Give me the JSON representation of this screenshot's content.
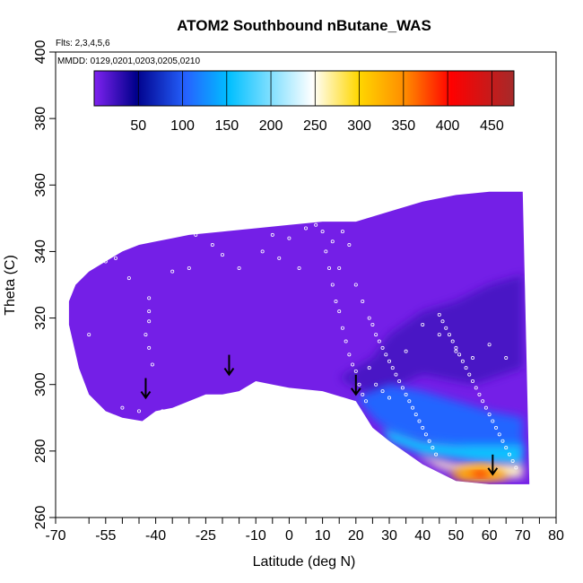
{
  "chart_data": {
    "type": "heatmap",
    "title": "ATOM2 Southbound nButane_WAS",
    "flights_label": "Flts: 2,3,4,5,6",
    "dates_label": "MMDD: 0129,0201,0203,0205,0210",
    "xlabel": "Latitude (deg N)",
    "ylabel": "Theta (C)",
    "xlim": [
      -70,
      80
    ],
    "ylim": [
      260,
      400
    ],
    "x_ticks": [
      -70,
      -55,
      -40,
      -25,
      -10,
      0,
      10,
      20,
      30,
      40,
      50,
      60,
      70,
      80
    ],
    "x_tick_labels": [
      "-70",
      "-55",
      "-40",
      "-25",
      "-10",
      "0",
      "10",
      "20",
      "30",
      "40",
      "50",
      "60",
      "70",
      "80"
    ],
    "x_minor_ticks": [
      -60,
      -50,
      -45,
      -35,
      -30,
      -20,
      -15,
      -5,
      5,
      15,
      25,
      35,
      45,
      55,
      65,
      75
    ],
    "y_ticks": [
      260,
      280,
      300,
      320,
      340,
      360,
      380,
      400
    ],
    "y_tick_labels": [
      "260",
      "280",
      "300",
      "320",
      "340",
      "360",
      "380",
      "400"
    ],
    "colorbar": {
      "range": [
        0,
        475
      ],
      "ticks": [
        50,
        100,
        150,
        200,
        250,
        300,
        350,
        400,
        450
      ],
      "tick_labels": [
        "50",
        "100",
        "150",
        "200",
        "250",
        "300",
        "350",
        "400",
        "450"
      ],
      "colors": [
        "#7f22f0",
        "#00008b",
        "#2563ff",
        "#00bfff",
        "#ffffff",
        "#ffd700",
        "#ff8c00",
        "#ff0000",
        "#a52a2a"
      ]
    },
    "boundary_top": [
      [
        -66,
        325
      ],
      [
        -64,
        330
      ],
      [
        -60,
        334
      ],
      [
        -55,
        337
      ],
      [
        -50,
        340
      ],
      [
        -45,
        342
      ],
      [
        -40,
        343
      ],
      [
        -35,
        344
      ],
      [
        -30,
        345
      ],
      [
        -20,
        346
      ],
      [
        -10,
        347
      ],
      [
        0,
        348
      ],
      [
        10,
        349
      ],
      [
        20,
        349
      ],
      [
        30,
        352
      ],
      [
        40,
        355
      ],
      [
        50,
        357
      ],
      [
        60,
        358
      ],
      [
        70,
        358
      ]
    ],
    "boundary_bottom": [
      [
        72,
        270
      ],
      [
        60,
        270
      ],
      [
        50,
        271
      ],
      [
        40,
        276
      ],
      [
        30,
        283
      ],
      [
        25,
        287
      ],
      [
        20,
        295
      ],
      [
        10,
        298
      ],
      [
        0,
        299
      ],
      [
        -5,
        300
      ],
      [
        -10,
        301
      ],
      [
        -15,
        298
      ],
      [
        -20,
        297
      ],
      [
        -25,
        297
      ],
      [
        -30,
        295
      ],
      [
        -35,
        293
      ],
      [
        -40,
        292
      ],
      [
        -44,
        289
      ],
      [
        -50,
        290
      ],
      [
        -55,
        292
      ],
      [
        -60,
        297
      ],
      [
        -63,
        305
      ],
      [
        -66,
        318
      ]
    ],
    "regions": [
      {
        "name": "dark-blue-core",
        "value": 25,
        "points": [
          [
            15,
            302
          ],
          [
            25,
            308
          ],
          [
            30,
            315
          ],
          [
            40,
            322
          ],
          [
            50,
            325
          ],
          [
            60,
            330
          ],
          [
            70,
            333
          ],
          [
            70,
            305
          ],
          [
            55,
            300
          ],
          [
            40,
            303
          ],
          [
            25,
            296
          ]
        ]
      },
      {
        "name": "blue-band",
        "value": 120,
        "points": [
          [
            20,
            296
          ],
          [
            30,
            300
          ],
          [
            40,
            298
          ],
          [
            50,
            295
          ],
          [
            60,
            292
          ],
          [
            70,
            290
          ],
          [
            70,
            280
          ],
          [
            55,
            280
          ],
          [
            45,
            282
          ],
          [
            32,
            285
          ],
          [
            26,
            289
          ]
        ]
      },
      {
        "name": "light-blue-band",
        "value": 180,
        "points": [
          [
            28,
            287
          ],
          [
            40,
            283
          ],
          [
            50,
            282
          ],
          [
            60,
            282
          ],
          [
            70,
            282
          ],
          [
            70,
            276
          ],
          [
            55,
            277
          ],
          [
            40,
            279
          ],
          [
            30,
            283
          ]
        ]
      },
      {
        "name": "pale-band",
        "value": 250,
        "points": [
          [
            38,
            279
          ],
          [
            50,
            276
          ],
          [
            62,
            276
          ],
          [
            70,
            276
          ],
          [
            70,
            272
          ],
          [
            56,
            272
          ],
          [
            45,
            275
          ]
        ]
      },
      {
        "name": "orange-core",
        "value": 340,
        "points": [
          [
            48,
            273
          ],
          [
            52,
            275
          ],
          [
            58,
            276
          ],
          [
            64,
            274
          ],
          [
            66,
            272
          ],
          [
            60,
            271
          ],
          [
            52,
            271
          ]
        ]
      },
      {
        "name": "red-core",
        "value": 420,
        "points": [
          [
            54,
            273
          ],
          [
            57,
            274
          ],
          [
            60,
            273
          ],
          [
            58,
            272
          ]
        ]
      }
    ],
    "arrows": [
      [
        -43,
        296
      ],
      [
        -18,
        303
      ],
      [
        20,
        297
      ],
      [
        61,
        273
      ]
    ],
    "sample_points": [
      [
        -58,
        336
      ],
      [
        -55,
        337
      ],
      [
        -52,
        338
      ],
      [
        -48,
        332
      ],
      [
        -42,
        326
      ],
      [
        -42,
        322
      ],
      [
        -42,
        319
      ],
      [
        -43,
        315
      ],
      [
        -42,
        311
      ],
      [
        -41,
        306
      ],
      [
        -60,
        315
      ],
      [
        -35,
        334
      ],
      [
        -30,
        335
      ],
      [
        -28,
        345
      ],
      [
        -23,
        342
      ],
      [
        -20,
        339
      ],
      [
        -15,
        335
      ],
      [
        -5,
        345
      ],
      [
        0,
        344
      ],
      [
        5,
        347
      ],
      [
        8,
        348
      ],
      [
        10,
        346
      ],
      [
        11,
        340
      ],
      [
        12,
        335
      ],
      [
        13,
        330
      ],
      [
        14,
        325
      ],
      [
        15,
        322
      ],
      [
        16,
        317
      ],
      [
        17,
        313
      ],
      [
        18,
        309
      ],
      [
        19,
        306
      ],
      [
        20,
        304
      ],
      [
        21,
        300
      ],
      [
        22,
        297
      ],
      [
        23,
        295
      ],
      [
        24,
        320
      ],
      [
        25,
        318
      ],
      [
        26,
        315
      ],
      [
        27,
        313
      ],
      [
        28,
        311
      ],
      [
        29,
        309
      ],
      [
        30,
        307
      ],
      [
        31,
        305
      ],
      [
        32,
        303
      ],
      [
        33,
        301
      ],
      [
        34,
        299
      ],
      [
        35,
        297
      ],
      [
        36,
        295
      ],
      [
        37,
        293
      ],
      [
        38,
        291
      ],
      [
        39,
        289
      ],
      [
        40,
        287
      ],
      [
        41,
        285
      ],
      [
        42,
        283
      ],
      [
        43,
        281
      ],
      [
        44,
        279
      ],
      [
        45,
        321
      ],
      [
        46,
        319
      ],
      [
        47,
        317
      ],
      [
        48,
        315
      ],
      [
        49,
        313
      ],
      [
        50,
        311
      ],
      [
        51,
        309
      ],
      [
        52,
        307
      ],
      [
        53,
        305
      ],
      [
        54,
        303
      ],
      [
        55,
        301
      ],
      [
        56,
        299
      ],
      [
        57,
        297
      ],
      [
        58,
        295
      ],
      [
        59,
        293
      ],
      [
        60,
        291
      ],
      [
        61,
        289
      ],
      [
        62,
        287
      ],
      [
        63,
        285
      ],
      [
        64,
        283
      ],
      [
        65,
        281
      ],
      [
        66,
        279
      ],
      [
        67,
        277
      ],
      [
        68,
        275
      ],
      [
        15,
        335
      ],
      [
        18,
        342
      ],
      [
        20,
        330
      ],
      [
        22,
        325
      ],
      [
        24,
        305
      ],
      [
        26,
        300
      ],
      [
        28,
        298
      ],
      [
        30,
        296
      ],
      [
        35,
        310
      ],
      [
        40,
        318
      ],
      [
        45,
        315
      ],
      [
        50,
        310
      ],
      [
        55,
        308
      ],
      [
        60,
        312
      ],
      [
        65,
        308
      ],
      [
        -50,
        293
      ],
      [
        -45,
        292
      ],
      [
        -38,
        292
      ],
      [
        3,
        335
      ],
      [
        -3,
        338
      ],
      [
        -8,
        340
      ],
      [
        13,
        343
      ],
      [
        16,
        346
      ]
    ]
  }
}
